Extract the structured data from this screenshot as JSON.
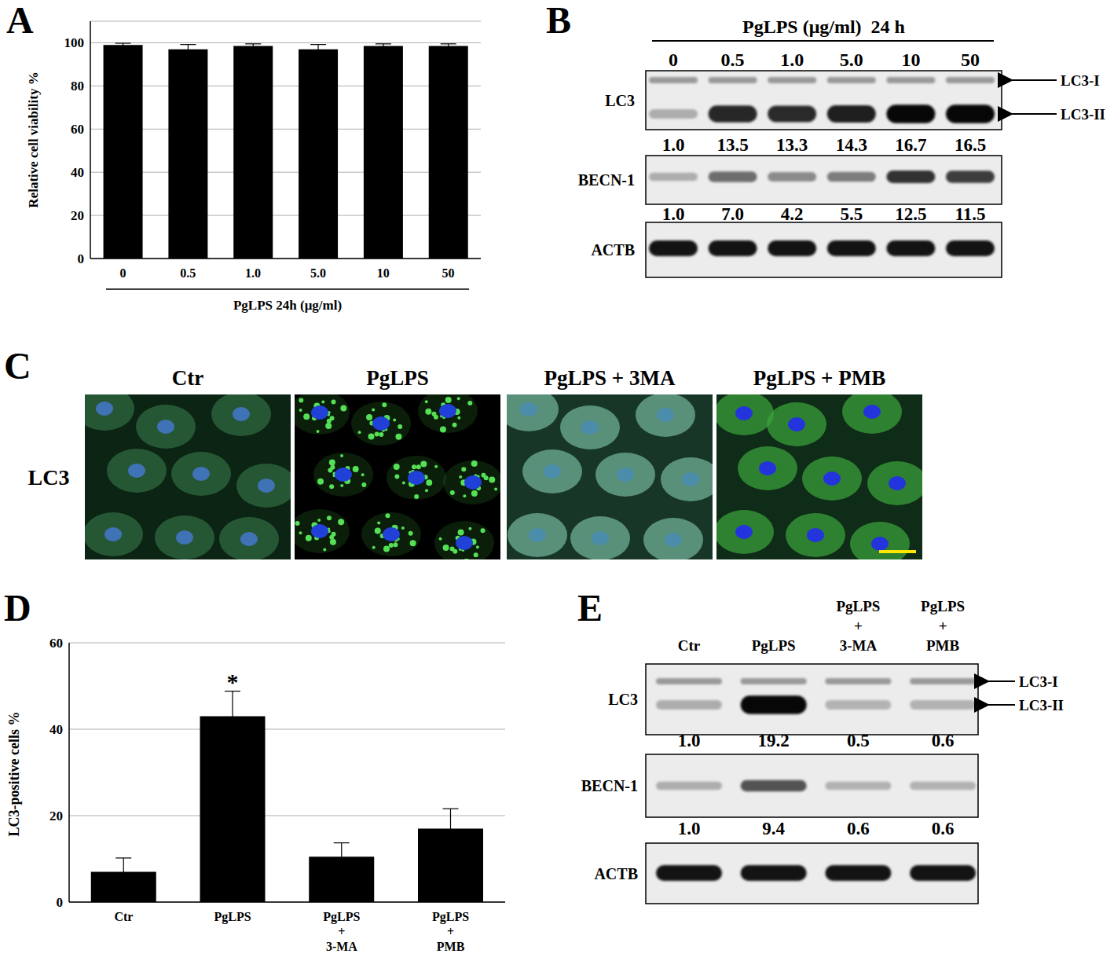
{
  "chart_data": [
    {
      "type": "bar",
      "panel": "A",
      "y_label": "Relative cell viability %",
      "x_label": "PgLPS 24h (μg/ml)",
      "categories": [
        "0",
        "0.5",
        "1.0",
        "5.0",
        "10",
        "50"
      ],
      "values": [
        99,
        97,
        98.5,
        97,
        98.5,
        98.5
      ],
      "errors": [
        0.8,
        2.2,
        1.0,
        2.2,
        1.0,
        1.0
      ],
      "color": "#000000",
      "ylim": [
        0,
        110
      ],
      "yticks": [
        0,
        20,
        40,
        60,
        80,
        100
      ],
      "grid": true
    },
    {
      "type": "bar",
      "panel": "D",
      "y_label": "LC3-positive cells %",
      "categories": [
        "Ctr",
        "PgLPS",
        "PgLPS + 3-MA",
        "PgLPS + PMB"
      ],
      "values": [
        7,
        43,
        10.5,
        17
      ],
      "errors": [
        3.2,
        5.8,
        3.2,
        4.6
      ],
      "color": "#000000",
      "ylim": [
        0,
        60
      ],
      "yticks": [
        0,
        20,
        40,
        60
      ],
      "grid": true,
      "annotations": [
        {
          "category": "PgLPS",
          "text": "*"
        }
      ]
    }
  ],
  "blots": [
    {
      "panel": "B",
      "title": "PgLPS (μg/ml)  24 h",
      "lanes": [
        "0",
        "0.5",
        "1.0",
        "5.0",
        "10",
        "50"
      ],
      "rows": [
        {
          "label": "LC3",
          "bands": [
            "LC3-I",
            "LC3-II"
          ],
          "quant": [
            "1.0",
            "13.5",
            "13.3",
            "14.3",
            "16.7",
            "16.5"
          ]
        },
        {
          "label": "BECN-1",
          "quant": [
            "1.0",
            "7.0",
            "4.2",
            "5.5",
            "12.5",
            "11.5"
          ]
        },
        {
          "label": "ACTB"
        }
      ]
    },
    {
      "panel": "E",
      "lanes": [
        "Ctr",
        "PgLPS",
        "PgLPS + 3-MA",
        "PgLPS + PMB"
      ],
      "rows": [
        {
          "label": "LC3",
          "bands": [
            "LC3-I",
            "LC3-II"
          ],
          "quant": [
            "1.0",
            "19.2",
            "0.5",
            "0.6"
          ]
        },
        {
          "label": "BECN-1",
          "quant": [
            "1.0",
            "9.4",
            "0.6",
            "0.6"
          ]
        },
        {
          "label": "ACTB"
        }
      ]
    }
  ],
  "micrographs": {
    "panel": "C",
    "row_label": "LC3",
    "images": [
      "Ctr",
      "PgLPS",
      "PgLPS + 3MA",
      "PgLPS + PMB"
    ]
  }
}
